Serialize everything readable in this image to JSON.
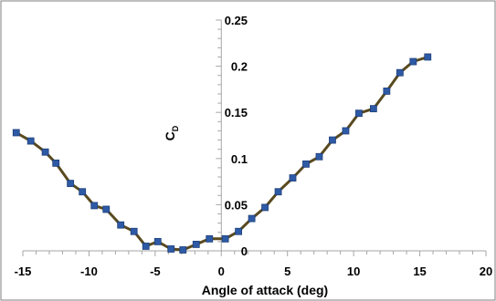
{
  "chart_data": {
    "type": "line",
    "title": "",
    "xlabel": "Angle of attack (deg)",
    "ylabel": "C",
    "ylabel_sub": "D",
    "xlim": [
      -15,
      20
    ],
    "ylim": [
      0,
      0.25
    ],
    "x_ticks": [
      -15,
      -10,
      -5,
      0,
      5,
      10,
      15,
      20
    ],
    "y_ticks": [
      0,
      0.05,
      0.1,
      0.15,
      0.2,
      0.25
    ],
    "x_tick_labels": [
      "-15",
      "-10",
      "-5",
      "0",
      "5",
      "10",
      "15",
      "20"
    ],
    "y_tick_labels": [
      "0",
      "0.05",
      "0.1",
      "0.15",
      "0.2",
      "0.25"
    ],
    "grid": false,
    "legend": "none",
    "line_color": "#594a1f",
    "marker_color": "#2e5aa5",
    "series": [
      {
        "x": [
          -15.5,
          -14.4,
          -13.3,
          -12.5,
          -11.4,
          -10.5,
          -9.6,
          -8.7,
          -7.6,
          -6.6,
          -5.7,
          -4.8,
          -3.8,
          -2.9,
          -1.9,
          -0.9,
          0.3,
          1.3,
          2.3,
          3.3,
          4.3,
          5.4,
          6.4,
          7.4,
          8.4,
          9.4,
          10.4,
          11.5,
          12.5,
          13.5,
          14.5,
          15.6
        ],
        "values": [
          0.128,
          0.119,
          0.107,
          0.095,
          0.073,
          0.064,
          0.049,
          0.045,
          0.028,
          0.021,
          0.005,
          0.01,
          0.002,
          0.001,
          0.007,
          0.013,
          0.013,
          0.021,
          0.035,
          0.047,
          0.064,
          0.079,
          0.094,
          0.102,
          0.12,
          0.13,
          0.149,
          0.154,
          0.173,
          0.193,
          0.205,
          0.21
        ]
      }
    ]
  }
}
